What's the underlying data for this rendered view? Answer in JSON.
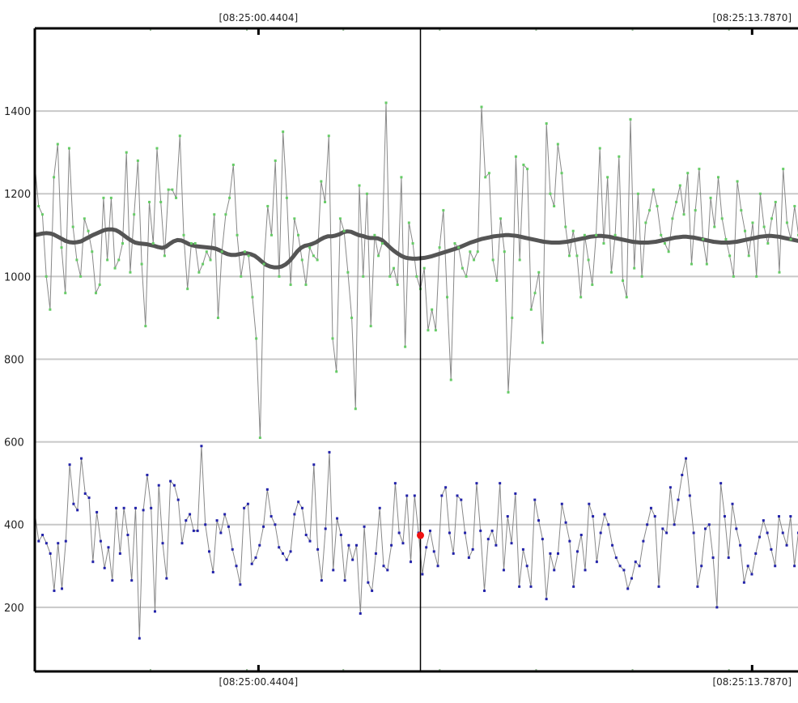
{
  "chart_data": {
    "type": "line",
    "title": "",
    "xlabel": "",
    "ylabel": "",
    "ylim": [
      45,
      1600
    ],
    "y_ticks": [
      200,
      400,
      600,
      800,
      1000,
      1200,
      1400
    ],
    "y_tick_labels": [
      "200",
      "400",
      "600",
      "800",
      "1000",
      "1200",
      "1400"
    ],
    "x_range": [
      0,
      200
    ],
    "time_markers": [
      {
        "label": "[08:25:00.4404]",
        "x": 58
      },
      {
        "label": "[08:25:13.7870]",
        "x": 186
      }
    ],
    "cursor_x": 100,
    "cursor_value": 374,
    "grid": true,
    "legend": "none",
    "series": [
      {
        "color": "#888888",
        "marker_color": "#66cc66",
        "values": [
          1270,
          1170,
          1150,
          1000,
          920,
          1240,
          1320,
          1070,
          960,
          1310,
          1120,
          1040,
          1000,
          1140,
          1110,
          1060,
          960,
          980,
          1190,
          1040,
          1190,
          1020,
          1040,
          1080,
          1300,
          1010,
          1150,
          1280,
          1030,
          880,
          1180,
          1080,
          1310,
          1180,
          1050,
          1210,
          1210,
          1190,
          1340,
          1100,
          970,
          1080,
          1080,
          1010,
          1030,
          1060,
          1040,
          1150,
          900,
          1060,
          1150,
          1190,
          1270,
          1100,
          1000,
          1060,
          1050,
          950,
          850,
          610,
          1030,
          1170,
          1100,
          1280,
          1000,
          1350,
          1190,
          980,
          1140,
          1100,
          1040,
          980,
          1070,
          1050,
          1040,
          1230,
          1180,
          1340,
          850,
          770,
          1140,
          1110,
          1010,
          900,
          680,
          1220,
          1000,
          1200,
          880,
          1100,
          1050,
          1080,
          1420,
          1000,
          1020,
          980,
          1240,
          830,
          1130,
          1080,
          1000,
          970,
          1020,
          870,
          920,
          870,
          1070,
          1160,
          950,
          750,
          1080,
          1070,
          1020,
          1000,
          1060,
          1040,
          1060,
          1410,
          1240,
          1250,
          1040,
          990,
          1140,
          1060,
          720,
          900,
          1290,
          1040,
          1270,
          1260,
          920,
          960,
          1010,
          840,
          1370,
          1200,
          1170,
          1320,
          1250,
          1120,
          1050,
          1110,
          1050,
          950,
          1100,
          1040,
          980,
          1100,
          1310,
          1080,
          1240,
          1010,
          1100,
          1290,
          990,
          950,
          1380,
          1020,
          1200,
          1000,
          1130,
          1160,
          1210,
          1170,
          1100,
          1080,
          1060,
          1140,
          1180,
          1220,
          1150,
          1250,
          1030,
          1160,
          1260,
          1090,
          1030,
          1190,
          1120,
          1240,
          1140,
          1090,
          1050,
          1000,
          1230,
          1160,
          1110,
          1050,
          1130,
          1000,
          1200,
          1120,
          1080,
          1140,
          1180,
          1010,
          1260,
          1130,
          1090,
          1170,
          1100,
          1050,
          1160
        ],
        "smooth": [
          1100,
          1102,
          1104,
          1105,
          1104,
          1101,
          1096,
          1091,
          1086,
          1083,
          1082,
          1083,
          1085,
          1090,
          1095,
          1100,
          1104,
          1108,
          1112,
          1114,
          1114,
          1112,
          1107,
          1100,
          1093,
          1087,
          1082,
          1080,
          1079,
          1078,
          1076,
          1074,
          1071,
          1069,
          1072,
          1079,
          1085,
          1088,
          1087,
          1083,
          1078,
          1075,
          1073,
          1072,
          1071,
          1070,
          1069,
          1067,
          1063,
          1058,
          1054,
          1052,
          1052,
          1054,
          1056,
          1056,
          1054,
          1050,
          1043,
          1035,
          1028,
          1024,
          1022,
          1022,
          1024,
          1029,
          1037,
          1048,
          1060,
          1069,
          1074,
          1076,
          1079,
          1083,
          1089,
          1094,
          1097,
          1097,
          1099,
          1102,
          1107,
          1109,
          1108,
          1104,
          1100,
          1098,
          1095,
          1093,
          1093,
          1092,
          1088,
          1080,
          1071,
          1063,
          1056,
          1050,
          1046,
          1044,
          1043,
          1043,
          1044,
          1045,
          1047,
          1049,
          1052,
          1055,
          1058,
          1061,
          1064,
          1067,
          1070,
          1074,
          1078,
          1082,
          1085,
          1088,
          1091,
          1093,
          1095,
          1097,
          1098,
          1099,
          1100,
          1100,
          1099,
          1098,
          1096,
          1094,
          1092,
          1090,
          1088,
          1086,
          1084,
          1083,
          1082,
          1082,
          1082,
          1083,
          1084,
          1086,
          1088,
          1090,
          1092,
          1094,
          1096,
          1097,
          1098,
          1098,
          1097,
          1096,
          1094,
          1092,
          1090,
          1088,
          1086,
          1084,
          1083,
          1082,
          1082,
          1082,
          1083,
          1084,
          1086,
          1088,
          1090,
          1092,
          1094,
          1095,
          1096,
          1096,
          1095,
          1094,
          1092,
          1090,
          1088,
          1086,
          1084,
          1083,
          1082,
          1082,
          1082,
          1083,
          1084,
          1086,
          1088,
          1090,
          1092,
          1094,
          1096,
          1097,
          1098,
          1098,
          1097,
          1096,
          1094,
          1092,
          1090,
          1088,
          1086,
          1084,
          1083
        ]
      },
      {
        "color": "#888888",
        "marker_color": "#2222aa",
        "values": [
          430,
          360,
          375,
          355,
          330,
          240,
          355,
          245,
          360,
          545,
          450,
          435,
          560,
          475,
          465,
          310,
          430,
          360,
          295,
          345,
          265,
          440,
          330,
          440,
          375,
          265,
          440,
          125,
          435,
          520,
          440,
          190,
          495,
          355,
          270,
          505,
          495,
          460,
          355,
          410,
          425,
          385,
          385,
          590,
          400,
          335,
          285,
          410,
          380,
          425,
          395,
          340,
          300,
          255,
          440,
          450,
          305,
          320,
          350,
          395,
          485,
          420,
          400,
          345,
          330,
          315,
          335,
          425,
          455,
          440,
          375,
          360,
          545,
          340,
          265,
          390,
          575,
          290,
          415,
          375,
          265,
          350,
          315,
          350,
          185,
          395,
          260,
          240,
          330,
          440,
          300,
          290,
          350,
          500,
          380,
          355,
          470,
          310,
          470,
          380,
          280,
          345,
          385,
          335,
          300,
          470,
          490,
          380,
          330,
          470,
          460,
          380,
          320,
          340,
          500,
          385,
          240,
          365,
          385,
          350,
          500,
          290,
          420,
          355,
          475,
          250,
          340,
          300,
          250,
          460,
          410,
          365,
          220,
          330,
          290,
          330,
          450,
          405,
          360,
          250,
          335,
          375,
          290,
          450,
          420,
          310,
          380,
          425,
          400,
          350,
          320,
          300,
          290,
          245,
          270,
          310,
          300,
          360,
          400,
          440,
          420,
          250,
          390,
          380,
          490,
          400,
          460,
          520,
          560,
          470,
          380,
          250,
          300,
          390,
          400,
          320,
          200,
          500,
          420,
          320,
          450,
          390,
          350,
          260,
          300,
          280,
          330,
          370,
          410,
          380,
          340,
          300,
          420,
          380,
          350,
          420,
          300,
          380,
          420,
          360
        ]
      }
    ]
  }
}
